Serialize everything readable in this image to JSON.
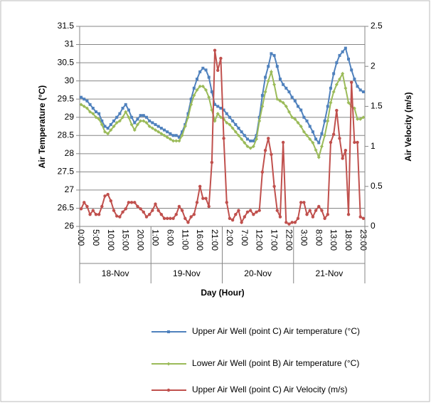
{
  "chart_data": {
    "type": "line",
    "x_label": "Day (Hour)",
    "y_label": "Air Temperature (°C)",
    "y2_label": "Air Velocity (m/s)",
    "categories": [
      "0:00",
      null,
      null,
      null,
      null,
      "5:00",
      null,
      null,
      null,
      null,
      "10:00",
      null,
      null,
      null,
      null,
      "15:00",
      null,
      null,
      null,
      null,
      "20:00",
      null,
      null,
      null,
      null,
      "1:00",
      null,
      null,
      null,
      null,
      "6:00",
      null,
      null,
      null,
      null,
      "11:00",
      null,
      null,
      null,
      null,
      "16:00",
      null,
      null,
      null,
      null,
      "21:00",
      null,
      null,
      null,
      null,
      "2:00",
      null,
      null,
      null,
      null,
      "7:00",
      null,
      null,
      null,
      null,
      "12:00",
      null,
      null,
      null,
      null,
      "17:00",
      null,
      null,
      null,
      null,
      "22:00",
      null,
      null,
      null,
      null,
      "3:00",
      null,
      null,
      null,
      null,
      "8:00",
      null,
      null,
      null,
      null,
      "13:00",
      null,
      null,
      null,
      null,
      "18:00",
      null,
      null,
      null,
      null,
      "23:00"
    ],
    "groups": [
      "18-Nov",
      "19-Nov",
      "20-Nov",
      "21-Nov"
    ],
    "ylim": [
      26,
      31.5
    ],
    "yticks": [
      26,
      26.5,
      27,
      27.5,
      28,
      28.5,
      29,
      29.5,
      30,
      30.5,
      31,
      31.5
    ],
    "y2lim": [
      0,
      2.5
    ],
    "y2ticks": [
      0,
      0.5,
      1,
      1.5,
      2,
      2.5
    ],
    "grid": true,
    "legend": "bottom",
    "series": [
      {
        "name": "Upper Air Well (point C) Air temperature (°C)",
        "color": "#4f81bd",
        "marker": "square",
        "values": [
          29.55,
          29.5,
          29.45,
          29.35,
          29.25,
          29.15,
          29.1,
          28.9,
          28.75,
          28.7,
          28.8,
          28.9,
          29.0,
          29.1,
          29.25,
          29.35,
          29.2,
          29.0,
          28.85,
          28.95,
          29.05,
          29.05,
          29.0,
          28.9,
          28.85,
          28.8,
          28.75,
          28.7,
          28.65,
          28.6,
          28.55,
          28.5,
          28.5,
          28.45,
          28.6,
          28.8,
          29.1,
          29.5,
          29.8,
          30.05,
          30.25,
          30.35,
          30.3,
          30.1,
          29.7,
          29.35,
          29.3,
          29.25,
          29.2,
          29.1,
          29.0,
          28.9,
          28.8,
          28.7,
          28.6,
          28.5,
          28.4,
          28.35,
          28.35,
          28.5,
          29.0,
          29.6,
          30.1,
          30.4,
          30.75,
          30.7,
          30.4,
          30.05,
          29.9,
          29.8,
          29.7,
          29.55,
          29.45,
          29.3,
          29.2,
          29.0,
          28.9,
          28.75,
          28.6,
          28.4,
          28.3,
          28.55,
          28.9,
          29.3,
          29.8,
          30.2,
          30.5,
          30.7,
          30.8,
          30.9,
          30.6,
          30.3,
          30.05,
          29.85,
          29.75,
          29.7
        ]
      },
      {
        "name": "Lower Air Well (point B) Air temperature (°C)",
        "color": "#9bbb59",
        "marker": "diamond",
        "values": [
          29.35,
          29.3,
          29.25,
          29.15,
          29.1,
          29.0,
          28.95,
          28.8,
          28.6,
          28.55,
          28.65,
          28.75,
          28.85,
          28.9,
          29.0,
          29.15,
          29.0,
          28.8,
          28.65,
          28.8,
          28.9,
          28.9,
          28.85,
          28.75,
          28.7,
          28.65,
          28.6,
          28.55,
          28.5,
          28.45,
          28.4,
          28.35,
          28.35,
          28.35,
          28.5,
          28.75,
          29.0,
          29.35,
          29.6,
          29.75,
          29.85,
          29.85,
          29.75,
          29.55,
          29.2,
          28.9,
          29.1,
          29.0,
          28.95,
          28.85,
          28.8,
          28.7,
          28.6,
          28.5,
          28.4,
          28.3,
          28.2,
          28.15,
          28.2,
          28.4,
          28.9,
          29.3,
          29.7,
          30.0,
          30.25,
          29.9,
          29.5,
          29.45,
          29.4,
          29.3,
          29.15,
          29.0,
          28.95,
          28.85,
          28.75,
          28.6,
          28.5,
          28.4,
          28.3,
          28.1,
          27.9,
          28.2,
          28.5,
          28.9,
          29.4,
          29.7,
          29.9,
          30.05,
          30.2,
          29.8,
          29.4,
          29.3,
          29.25,
          28.95,
          28.95,
          29.0
        ]
      },
      {
        "name": "Upper Air Well (point C) Air Velocity (m/s)",
        "color": "#c0504d",
        "marker": "circle",
        "axis": "y2",
        "values": [
          0.22,
          0.3,
          0.25,
          0.15,
          0.2,
          0.15,
          0.15,
          0.25,
          0.38,
          0.4,
          0.32,
          0.2,
          0.13,
          0.12,
          0.18,
          0.22,
          0.3,
          0.3,
          0.3,
          0.25,
          0.22,
          0.18,
          0.12,
          0.15,
          0.2,
          0.28,
          0.2,
          0.15,
          0.1,
          0.1,
          0.1,
          0.1,
          0.15,
          0.25,
          0.2,
          0.1,
          0.05,
          0.12,
          0.15,
          0.3,
          0.5,
          0.35,
          0.35,
          0.25,
          0.8,
          2.2,
          1.95,
          2.1,
          1.1,
          0.3,
          0.1,
          0.08,
          0.15,
          0.2,
          0.05,
          0.12,
          0.18,
          0.2,
          0.15,
          0.18,
          0.2,
          0.68,
          0.95,
          1.1,
          0.9,
          0.5,
          0.2,
          0.12,
          1.05,
          0.05,
          0.03,
          0.05,
          0.05,
          0.1,
          0.3,
          0.3,
          0.15,
          0.2,
          0.12,
          0.2,
          0.25,
          0.2,
          0.1,
          0.15,
          1.05,
          1.15,
          1.45,
          1.1,
          0.85,
          0.95,
          0.15,
          1.8,
          1.05,
          1.05,
          0.12,
          0.1
        ]
      }
    ]
  }
}
